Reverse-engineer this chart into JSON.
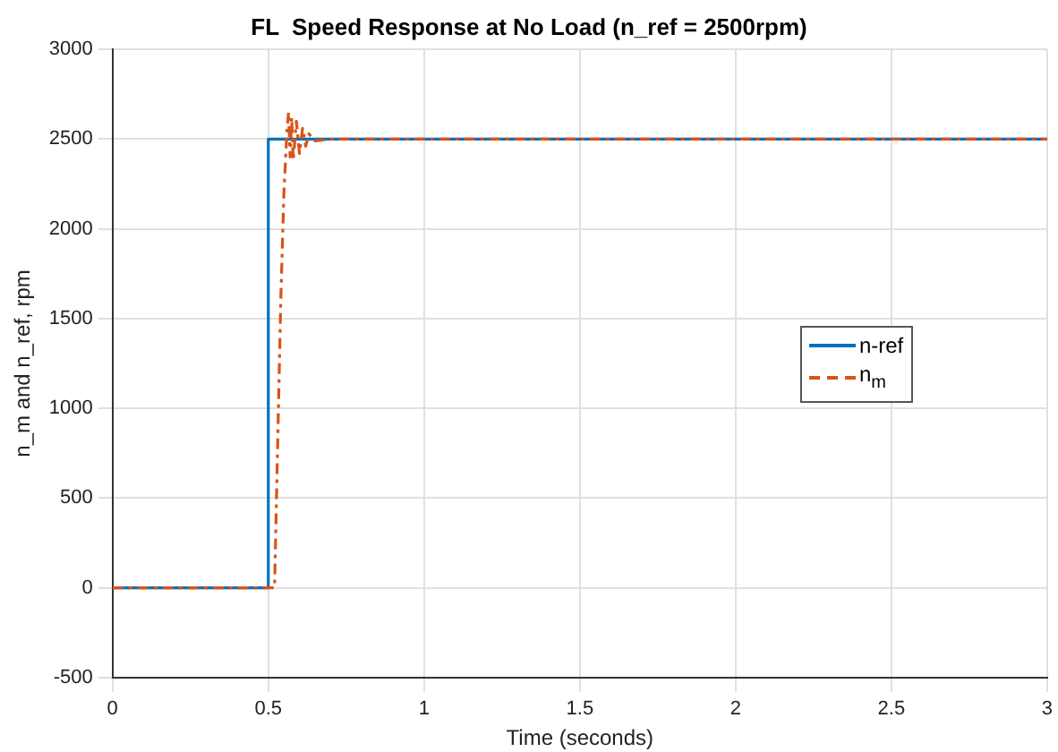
{
  "chart_data": {
    "type": "line",
    "title": "FL  Speed Response at No Load (n_ref = 2500rpm)",
    "xlabel": "Time (seconds)",
    "ylabel": "n_m and n_ref, rpm",
    "xlim": [
      0,
      3
    ],
    "xticks": [
      0,
      0.5,
      1,
      1.5,
      2,
      2.5,
      3
    ],
    "ylim": [
      -500,
      3000
    ],
    "yticks": [
      -500,
      0,
      500,
      1000,
      1500,
      2000,
      2500,
      3000
    ],
    "grid": true,
    "legend": "right",
    "marker": "none",
    "series": [
      {
        "name": "n-ref",
        "color": "#0072bd",
        "line_style": "solid",
        "x": [
          0,
          0.5,
          0.5,
          3
        ],
        "values": [
          0,
          0,
          2500,
          2500
        ]
      },
      {
        "name": "n$_{m}$",
        "color": "#d95319",
        "line_style": "dashed",
        "x": [
          0,
          0.5,
          0.52,
          0.53,
          0.54,
          0.55,
          0.56,
          0.565,
          0.57,
          0.575,
          0.58,
          0.59,
          0.6,
          0.61,
          0.62,
          0.63,
          0.65,
          0.7,
          3
        ],
        "values": [
          0,
          0,
          0,
          800,
          1600,
          2200,
          2550,
          2650,
          2400,
          2620,
          2380,
          2600,
          2420,
          2560,
          2460,
          2530,
          2490,
          2500,
          2500
        ]
      }
    ]
  }
}
